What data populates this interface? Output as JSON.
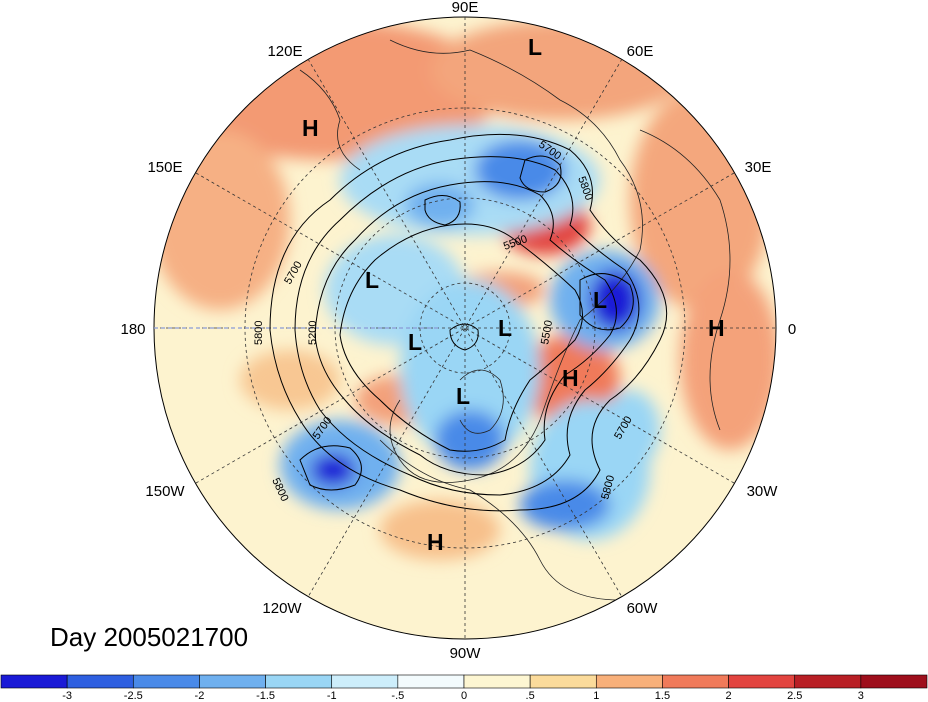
{
  "date_label": "Day 2005021700",
  "longitude_labels": {
    "top": "90E",
    "upper_left": "120E",
    "upper_right": "60E",
    "mid_left_upper": "150E",
    "mid_right_upper": "30E",
    "left": "180",
    "right": "0",
    "mid_left_lower": "150W",
    "mid_right_lower": "30W",
    "lower_left": "120W",
    "lower_right": "60W",
    "bottom": "90W"
  },
  "pressure_centers": [
    {
      "kind": "L",
      "label": "L"
    },
    {
      "kind": "H",
      "label": "H"
    },
    {
      "kind": "L",
      "label": "L"
    },
    {
      "kind": "L",
      "label": "L"
    },
    {
      "kind": "L",
      "label": "L"
    },
    {
      "kind": "L",
      "label": "L"
    },
    {
      "kind": "H",
      "label": "H"
    },
    {
      "kind": "L",
      "label": "L"
    },
    {
      "kind": "H",
      "label": "H"
    },
    {
      "kind": "H",
      "label": "H"
    }
  ],
  "contour_labels": [
    "5700",
    "5800",
    "5500",
    "5700",
    "5800",
    "5200",
    "5500",
    "5700",
    "5800",
    "5700",
    "5800"
  ],
  "colorbar": {
    "tick_labels": [
      "-3",
      "-2.5",
      "-2",
      "-1.5",
      "-1",
      "-.5",
      "0",
      ".5",
      "1",
      "1.5",
      "2",
      "2.5",
      "3"
    ],
    "colors": [
      "#1a1ad6",
      "#2e5fe0",
      "#4a8ae8",
      "#6fb0ef",
      "#9ad6f5",
      "#cdeefb",
      "#f3fbfd",
      "#fdf6d2",
      "#fbdb9b",
      "#f8b07a",
      "#f07a5a",
      "#e2443f",
      "#b81f25",
      "#9e0f1c"
    ]
  }
}
